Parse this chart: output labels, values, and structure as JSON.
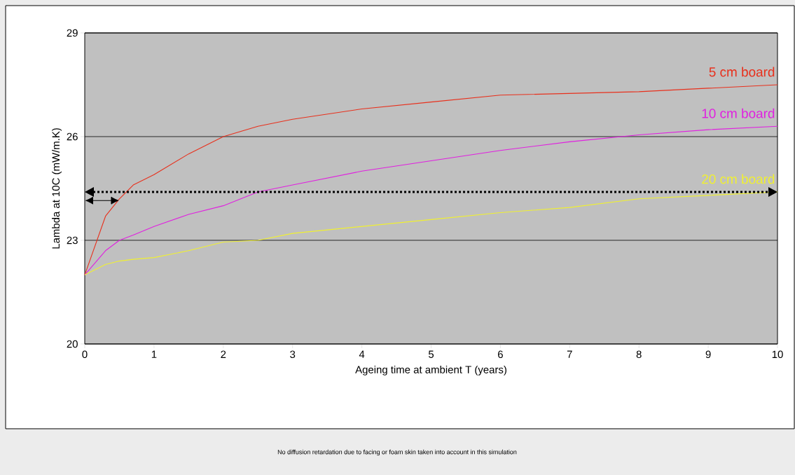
{
  "chart_data": {
    "type": "line",
    "xlabel": "Ageing time at ambient T (years)",
    "ylabel": "Lambda at 10C (mW/m.K)",
    "annotations": [
      "No diffusion retardation due to facing or foam skin taken into account in this simulation"
    ],
    "x": [
      0,
      0.3,
      0.5,
      0.7,
      1,
      1.5,
      2,
      2.5,
      3,
      4,
      5,
      6,
      7,
      8,
      9,
      10
    ],
    "series": [
      {
        "name": "5 cm board",
        "color": "#e8301c",
        "values": [
          22.0,
          23.7,
          24.2,
          24.6,
          24.9,
          25.5,
          26.0,
          26.3,
          26.5,
          26.8,
          27.0,
          27.2,
          27.25,
          27.3,
          27.4,
          27.5
        ]
      },
      {
        "name": "10 cm board",
        "color": "#e020e0",
        "values": [
          22.0,
          22.7,
          23.0,
          23.15,
          23.4,
          23.75,
          24.0,
          24.4,
          24.6,
          25.0,
          25.3,
          25.6,
          25.85,
          26.05,
          26.2,
          26.3
        ]
      },
      {
        "name": "20 cm board",
        "color": "#f0f030",
        "values": [
          22.0,
          22.3,
          22.4,
          22.45,
          22.5,
          22.7,
          22.95,
          23.0,
          23.2,
          23.4,
          23.6,
          23.8,
          23.95,
          24.2,
          24.3,
          24.4
        ]
      }
    ],
    "xlim": [
      0,
      10
    ],
    "ylim": [
      20,
      29
    ],
    "xticks": [
      0,
      1,
      2,
      3,
      4,
      5,
      6,
      7,
      8,
      9,
      10
    ],
    "yticks": [
      20,
      23,
      26,
      29
    ],
    "grid": "y",
    "ref_lines": [
      {
        "axis": "y",
        "value": 24.4,
        "label": null,
        "color": "#000000",
        "line_style": "dotted"
      }
    ]
  }
}
